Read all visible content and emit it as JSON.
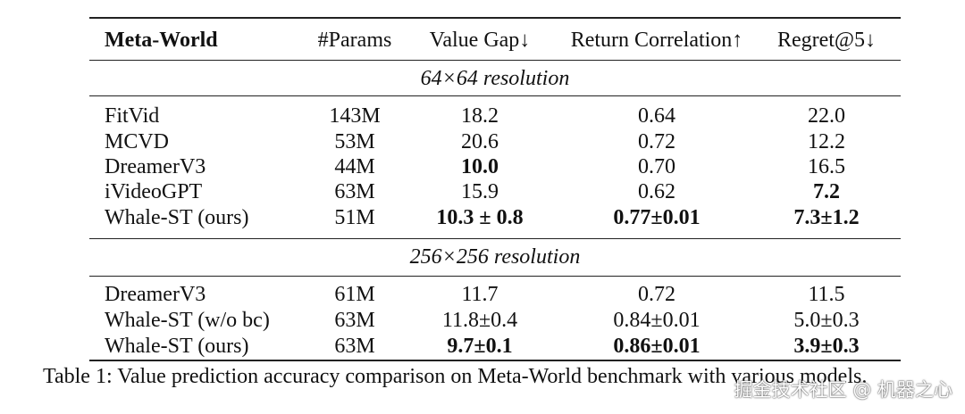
{
  "table": {
    "header": [
      "Meta-World",
      "#Params",
      "Value Gap↓",
      "Return Correlation↑",
      "Regret@5↓"
    ],
    "sections": [
      {
        "title": "64×64 resolution",
        "rows": [
          [
            "FitVid",
            "143M",
            "18.2",
            "0.64",
            "22.0"
          ],
          [
            "MCVD",
            "53M",
            "20.6",
            "0.72",
            "12.2"
          ],
          [
            "DreamerV3",
            "44M",
            "10.0",
            "0.70",
            "16.5"
          ],
          [
            "iVideoGPT",
            "63M",
            "15.9",
            "0.62",
            "7.2"
          ],
          [
            "Whale-ST (ours)",
            "51M",
            "10.3 ± 0.8",
            "0.77±0.01",
            "7.3±1.2"
          ]
        ]
      },
      {
        "title": "256×256 resolution",
        "rows": [
          [
            "DreamerV3",
            "61M",
            "11.7",
            "0.72",
            "11.5"
          ],
          [
            "Whale-ST (w/o bc)",
            "63M",
            "11.8±0.4",
            "0.84±0.01",
            "5.0±0.3"
          ],
          [
            "Whale-ST (ours)",
            "63M",
            "9.7±0.1",
            "0.86±0.01",
            "3.9±0.3"
          ]
        ]
      }
    ]
  },
  "caption": "Table 1: Value prediction accuracy comparison on Meta-World benchmark with various models.",
  "watermark": "掘金技术社区 @ 机器之心"
}
